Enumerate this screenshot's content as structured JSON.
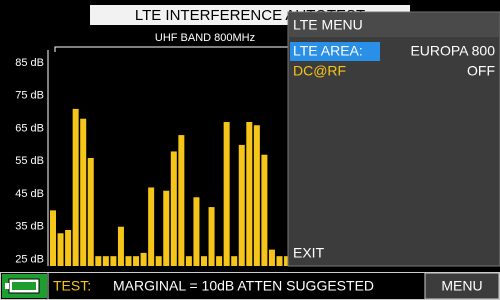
{
  "chart_data": {
    "type": "bar",
    "title": "LTE INTERFERENCE AUTOTEST",
    "subtitle": "UHF BAND 800MHz",
    "categories": [
      null,
      null,
      null,
      null,
      null,
      null,
      null,
      null,
      null,
      null,
      null,
      null,
      null,
      null,
      null,
      null,
      null,
      null,
      null,
      null,
      null,
      null,
      null,
      null,
      null,
      null,
      null,
      null,
      null,
      null,
      null,
      null
    ],
    "values": [
      40,
      33,
      34,
      71,
      68,
      56,
      26,
      26,
      26,
      35,
      26,
      26,
      27,
      47,
      26,
      46,
      58,
      63,
      26,
      44,
      26,
      41,
      26,
      67,
      26,
      60,
      67,
      66,
      57,
      28,
      26,
      26
    ],
    "color": "#f6c51a",
    "ylim": [
      23,
      89
    ],
    "yticks": [
      {
        "value": 85,
        "label": "85 dB"
      },
      {
        "value": 75,
        "label": "75 dB"
      },
      {
        "value": 65,
        "label": "65 dB"
      },
      {
        "value": 55,
        "label": "55 dB"
      },
      {
        "value": 45,
        "label": "45 dB"
      },
      {
        "value": 35,
        "label": "35 dB"
      },
      {
        "value": 25,
        "label": "25 dB"
      }
    ],
    "grid": false
  },
  "menu": {
    "title": "LTE MENU",
    "items": [
      {
        "label": "LTE AREA:",
        "value": "EUROPA 800"
      },
      {
        "label": "DC@RF",
        "value": "OFF"
      },
      {
        "label": "EXIT"
      }
    ]
  },
  "status": {
    "label": "TEST:",
    "message": "MARGINAL = 10dB ATTEN SUGGESTED",
    "button": "MENU"
  }
}
